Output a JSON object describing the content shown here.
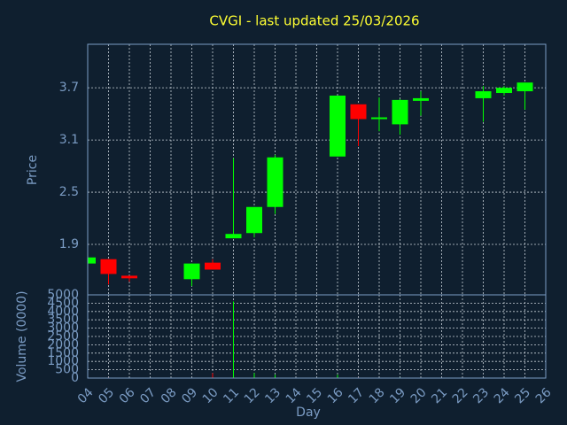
{
  "chart_data": {
    "type": "candlestick",
    "title": "CVGI - last updated 25/03/2026",
    "xlabel": "Day",
    "ylabel": "Price",
    "categories": [
      "04",
      "05",
      "06",
      "07",
      "08",
      "09",
      "10",
      "11",
      "12",
      "13",
      "14",
      "15",
      "16",
      "17",
      "18",
      "19",
      "20",
      "21",
      "22",
      "23",
      "24",
      "25",
      "26"
    ],
    "open": [
      1.68,
      1.73,
      1.54,
      null,
      null,
      1.5,
      1.69,
      1.97,
      2.03,
      2.33,
      null,
      null,
      2.91,
      3.51,
      3.35,
      3.28,
      3.55,
      null,
      null,
      3.58,
      3.64,
      3.66,
      null
    ],
    "high": [
      1.75,
      1.73,
      1.54,
      null,
      null,
      1.68,
      1.73,
      2.89,
      2.33,
      2.93,
      null,
      null,
      3.61,
      3.51,
      3.59,
      3.57,
      3.66,
      null,
      null,
      3.72,
      3.72,
      3.76,
      null
    ],
    "low": [
      1.68,
      1.44,
      1.47,
      null,
      null,
      1.42,
      1.61,
      1.97,
      1.98,
      2.25,
      null,
      null,
      2.91,
      3.03,
      3.2,
      3.16,
      3.38,
      null,
      null,
      3.31,
      3.61,
      3.45,
      null
    ],
    "close": [
      1.75,
      1.56,
      1.51,
      null,
      null,
      1.68,
      1.61,
      2.02,
      2.33,
      2.9,
      null,
      null,
      3.61,
      3.34,
      3.36,
      3.56,
      3.58,
      null,
      null,
      3.66,
      3.7,
      3.76,
      null
    ],
    "up_color": "#00ff00",
    "down_color": "#ff0000",
    "ylim": [
      1.32,
      4.2
    ],
    "yticks": [
      1.9,
      2.5,
      3.1,
      3.7
    ],
    "grid": true,
    "volume": {
      "ylabel": "Volume (0000)",
      "values": [
        20,
        30,
        20,
        null,
        null,
        20,
        300,
        4600,
        300,
        200,
        null,
        null,
        200,
        30,
        20,
        30,
        20,
        null,
        null,
        20,
        20,
        20,
        null
      ],
      "ylim": [
        0,
        5000
      ],
      "yticks": [
        0,
        500,
        1000,
        1500,
        2000,
        2500,
        3000,
        3500,
        4000,
        4500,
        5000
      ]
    }
  }
}
